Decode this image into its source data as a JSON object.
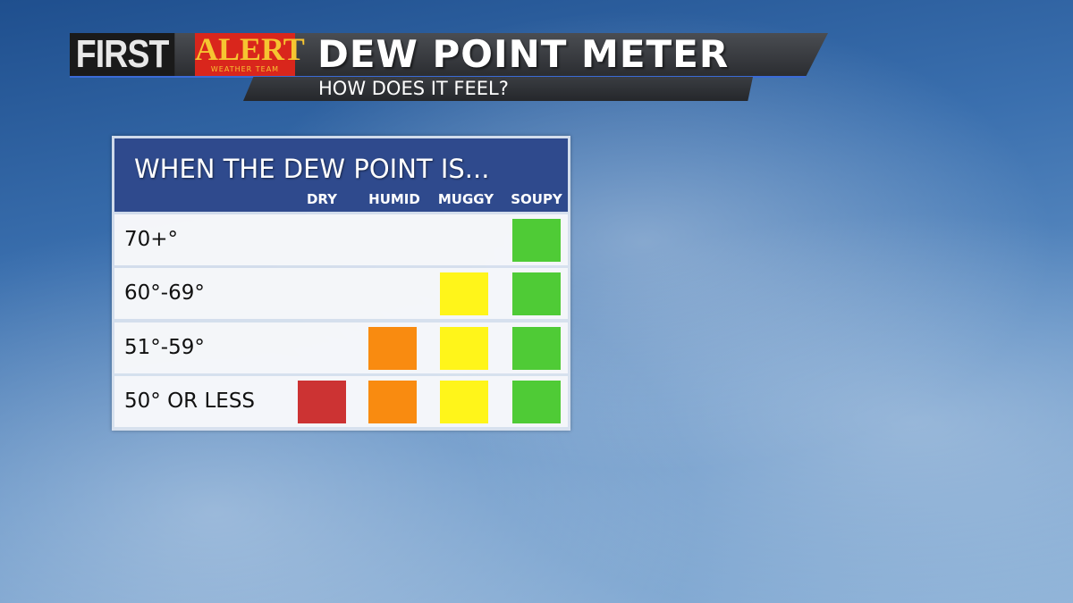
{
  "header": {
    "brand_first": "FIRST",
    "brand_alert": "ALERT",
    "brand_team": "WEATHER TEAM",
    "title": "DEW POINT METER",
    "subtitle": "HOW DOES IT FEEL?"
  },
  "table": {
    "heading": "WHEN THE DEW POINT IS...",
    "columns": [
      "DRY",
      "HUMID",
      "MUGGY",
      "SOUPY"
    ],
    "colors": {
      "DRY": "#cc3333",
      "HUMID": "#f98b10",
      "MUGGY": "#fff51a",
      "SOUPY": "#4fcb36"
    },
    "rows": [
      {
        "label": "70+°",
        "marks": [
          false,
          false,
          false,
          true
        ]
      },
      {
        "label": "60°-69°",
        "marks": [
          false,
          false,
          true,
          true
        ]
      },
      {
        "label": "51°-59°",
        "marks": [
          false,
          true,
          true,
          true
        ]
      },
      {
        "label": "50° OR LESS",
        "marks": [
          true,
          true,
          true,
          true
        ]
      }
    ]
  }
}
